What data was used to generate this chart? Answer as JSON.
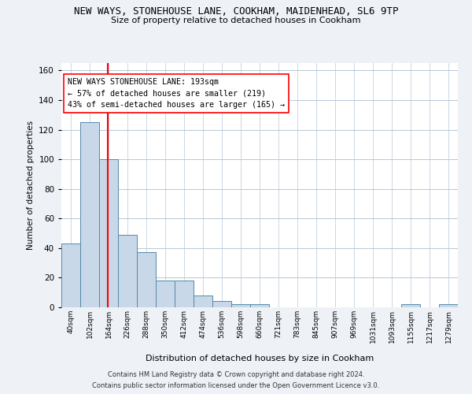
{
  "title": "NEW WAYS, STONEHOUSE LANE, COOKHAM, MAIDENHEAD, SL6 9TP",
  "subtitle": "Size of property relative to detached houses in Cookham",
  "xlabel": "Distribution of detached houses by size in Cookham",
  "ylabel": "Number of detached properties",
  "bar_color": "#c8d8e8",
  "bar_edge_color": "#5588aa",
  "grid_color": "#b8c8d8",
  "categories": [
    "40sqm",
    "102sqm",
    "164sqm",
    "226sqm",
    "288sqm",
    "350sqm",
    "412sqm",
    "474sqm",
    "536sqm",
    "598sqm",
    "660sqm",
    "721sqm",
    "783sqm",
    "845sqm",
    "907sqm",
    "969sqm",
    "1031sqm",
    "1093sqm",
    "1155sqm",
    "1217sqm",
    "1279sqm"
  ],
  "values": [
    43,
    125,
    100,
    49,
    37,
    18,
    18,
    8,
    4,
    2,
    2,
    0,
    0,
    0,
    0,
    0,
    0,
    0,
    2,
    0,
    2
  ],
  "ylim": [
    0,
    165
  ],
  "yticks": [
    0,
    20,
    40,
    60,
    80,
    100,
    120,
    140,
    160
  ],
  "annotation_box_text": "NEW WAYS STONEHOUSE LANE: 193sqm\n← 57% of detached houses are smaller (219)\n43% of semi-detached houses are larger (165) →",
  "footer_line1": "Contains HM Land Registry data © Crown copyright and database right 2024.",
  "footer_line2": "Contains public sector information licensed under the Open Government Licence v3.0.",
  "background_color": "#eef2f7",
  "plot_bg_color": "#ffffff"
}
